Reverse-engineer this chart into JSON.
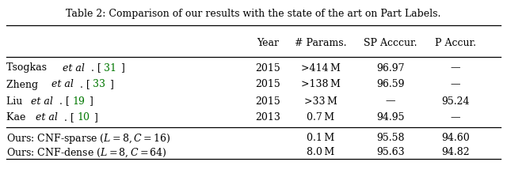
{
  "title": "Table 2: Comparison of our results with the state of the art on Part Labels.",
  "col_headers": [
    "Year",
    "# Params.",
    "SP Acccur.",
    "P Accur."
  ],
  "rows": [
    {
      "label_parts": [
        [
          "Tsogkas ",
          "normal"
        ],
        [
          "et al",
          "italic"
        ],
        [
          ". [",
          "normal"
        ],
        [
          "31",
          "green"
        ],
        [
          "]",
          "normal"
        ]
      ],
      "year": "2015",
      "params": ">414 M",
      "sp_accur": "96.97",
      "p_accur": "—"
    },
    {
      "label_parts": [
        [
          "Zheng ",
          "normal"
        ],
        [
          "et al",
          "italic"
        ],
        [
          ". [",
          "normal"
        ],
        [
          "33",
          "green"
        ],
        [
          "]",
          "normal"
        ]
      ],
      "year": "2015",
      "params": ">138 M",
      "sp_accur": "96.59",
      "p_accur": "—"
    },
    {
      "label_parts": [
        [
          "Liu ",
          "normal"
        ],
        [
          "et al",
          "italic"
        ],
        [
          ". [",
          "normal"
        ],
        [
          "19",
          "green"
        ],
        [
          "]",
          "normal"
        ]
      ],
      "year": "2015",
      "params": ">33 M",
      "sp_accur": "—",
      "p_accur": "95.24"
    },
    {
      "label_parts": [
        [
          "Kae ",
          "normal"
        ],
        [
          "et al",
          "italic"
        ],
        [
          ". [",
          "normal"
        ],
        [
          "10",
          "green"
        ],
        [
          "]",
          "normal"
        ]
      ],
      "year": "2013",
      "params": "0.7 M",
      "sp_accur": "94.95",
      "p_accur": "—"
    }
  ],
  "our_rows": [
    {
      "label": "Ours: CNF-sparse ($L = 8, C = 16$)",
      "params": "0.1 M",
      "sp_accur": "95.58",
      "p_accur": "94.60"
    },
    {
      "label": "Ours: CNF-dense ($L = 8, C = 64$)",
      "params": "8.0 M",
      "sp_accur": "95.63",
      "p_accur": "94.82"
    }
  ],
  "background_color": "#ffffff",
  "text_color": "#000000",
  "green_color": "#007700",
  "fontsize": 9.0
}
